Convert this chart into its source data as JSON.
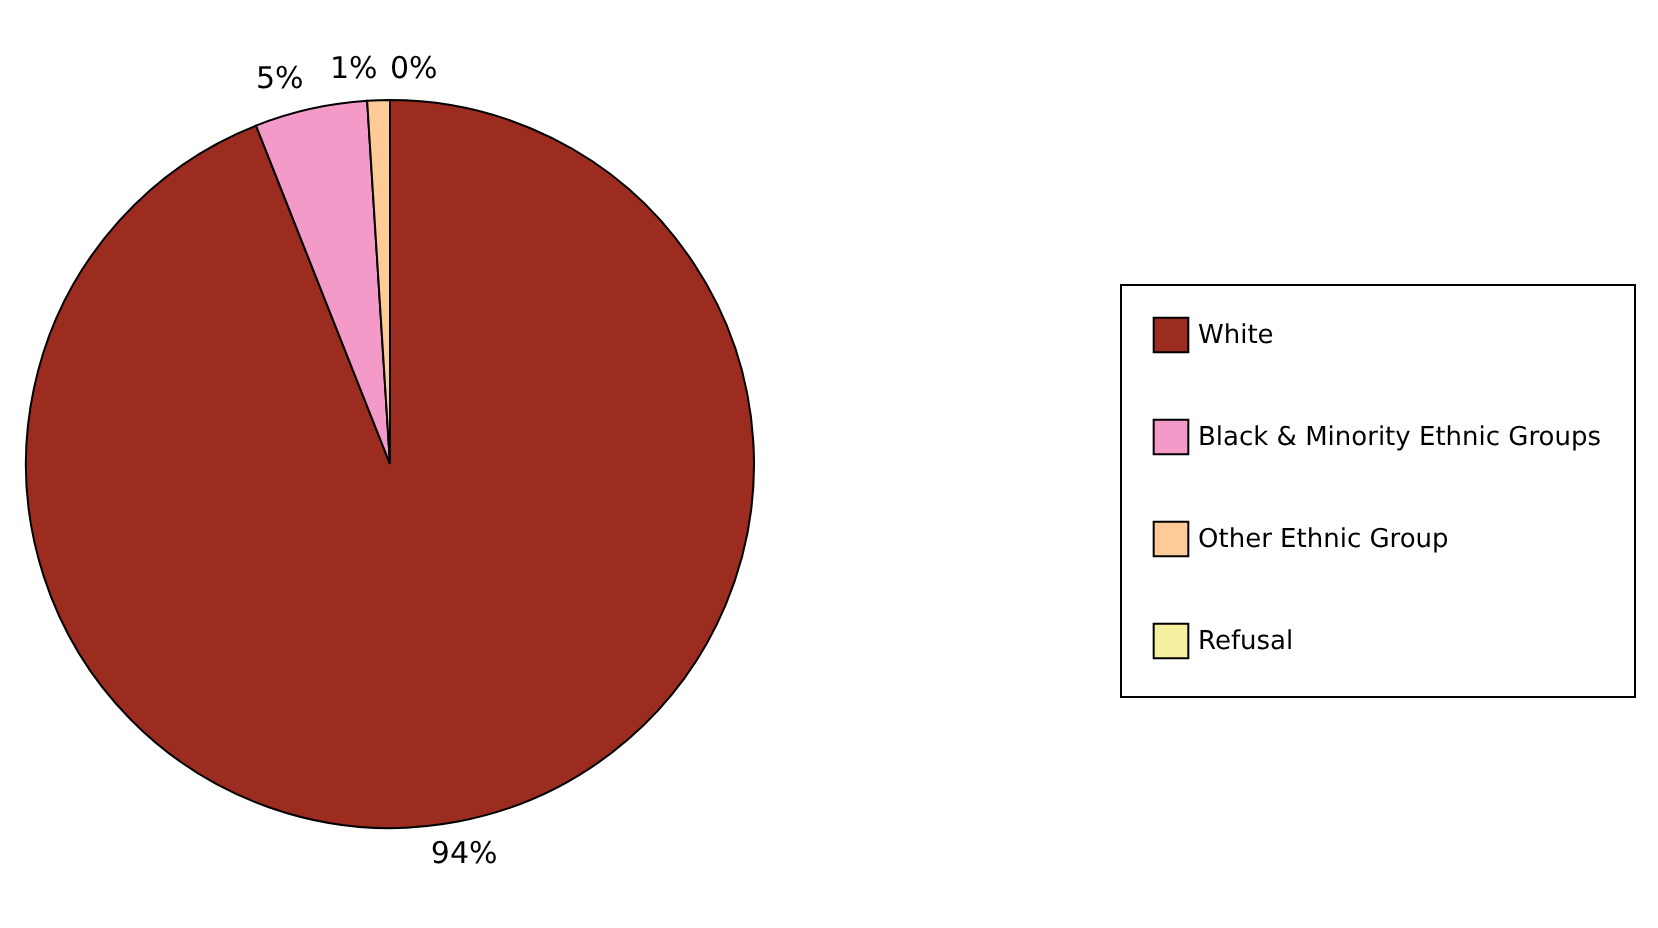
{
  "chart_data": {
    "type": "pie",
    "categories": [
      "White",
      "Black & Minority Ethnic Groups",
      "Other Ethnic Group",
      "Refusal"
    ],
    "values": [
      94,
      5,
      1,
      0
    ],
    "colors": [
      "#9c2b20",
      "#f49ac8",
      "#fdca98",
      "#f5f0a0"
    ],
    "value_labels": [
      "94%",
      "5%",
      "1%",
      "0%"
    ],
    "legend": "right"
  }
}
